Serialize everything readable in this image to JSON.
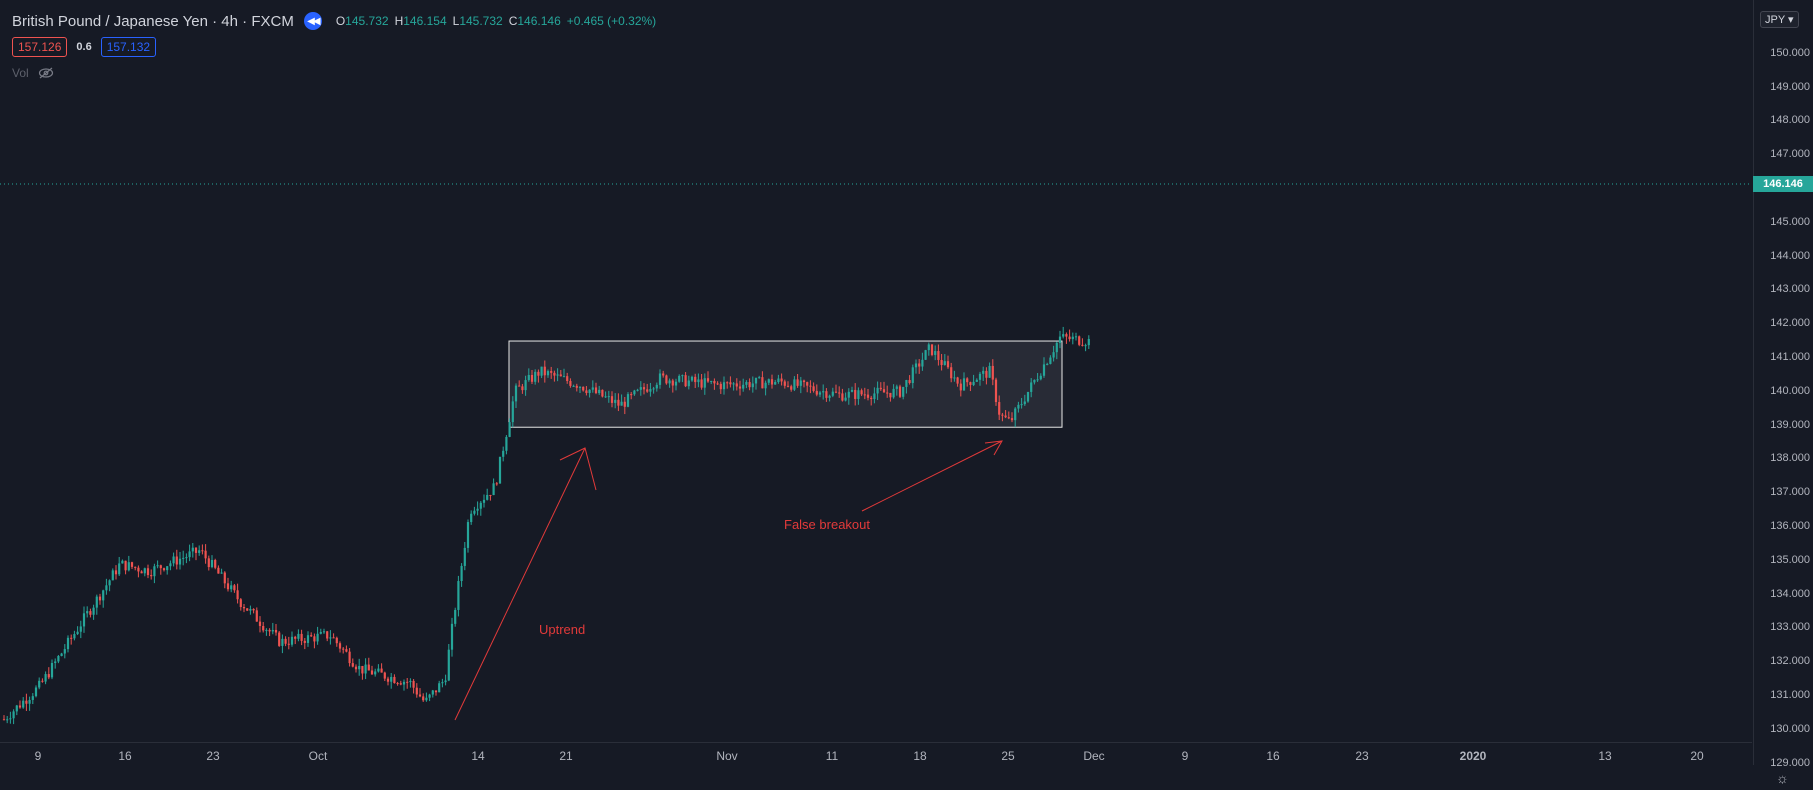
{
  "header": {
    "symbol": "British Pound / Japanese Yen · 4h · FXCM",
    "open_label": "O",
    "open": "145.732",
    "high_label": "H",
    "high": "146.154",
    "low_label": "L",
    "low": "145.732",
    "close_label": "C",
    "close": "146.146",
    "change": "+0.465 (+0.32%)"
  },
  "trade": {
    "sell": "157.126",
    "spread": "0.6",
    "buy": "157.132"
  },
  "volume_label": "Vol",
  "currency_btn": "JPY ▾",
  "current_price": "146.146",
  "y_axis": [
    "150.000",
    "149.000",
    "148.000",
    "147.000",
    "145.000",
    "144.000",
    "143.000",
    "142.000",
    "141.000",
    "140.000",
    "139.000",
    "138.000",
    "137.000",
    "136.000",
    "135.000",
    "134.000",
    "133.000",
    "132.000",
    "131.000",
    "130.000",
    "129.000"
  ],
  "x_axis": [
    "9",
    "16",
    "23",
    "Oct",
    "14",
    "21",
    "Nov",
    "11",
    "18",
    "25",
    "Dec",
    "9",
    "16",
    "23",
    "2020",
    "13",
    "20"
  ],
  "annotations": {
    "uptrend": "Uptrend",
    "false_breakout": "False breakout"
  },
  "colors": {
    "up": "#26a69a",
    "down": "#ef5350",
    "annotation": "#e23a3a",
    "background": "#161a25"
  }
}
